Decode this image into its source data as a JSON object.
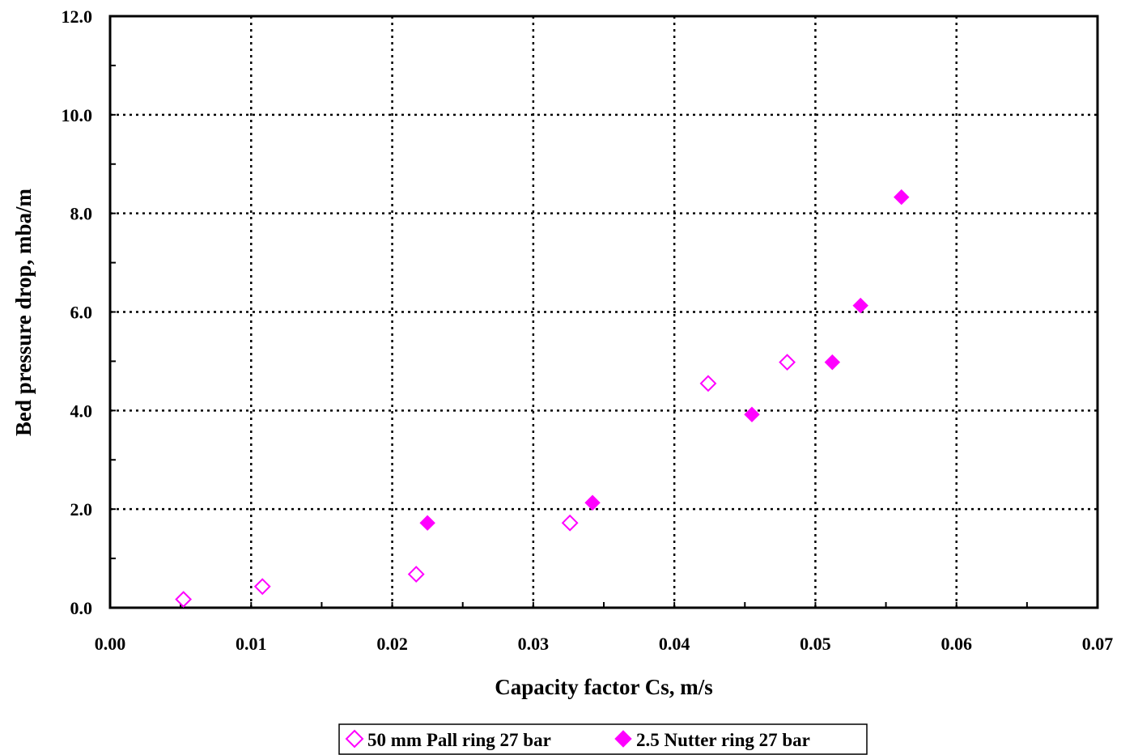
{
  "chart_data": {
    "type": "scatter",
    "xlabel": "Capacity factor Cs, m/s",
    "ylabel": "Bed pressure drop, mba/m",
    "xlim": [
      0,
      0.07
    ],
    "ylim": [
      0,
      12
    ],
    "x_ticks": [
      "0.00",
      "0.01",
      "0.02",
      "0.03",
      "0.04",
      "0.05",
      "0.06",
      "0.07"
    ],
    "y_ticks": [
      "0.0",
      "2.0",
      "4.0",
      "6.0",
      "8.0",
      "10.0",
      "12.0"
    ],
    "grid": true,
    "legend_position": "bottom",
    "series": [
      {
        "name": "50 mm Pall ring 27 bar",
        "marker": "hollow-diamond",
        "color": "#ff00ff",
        "points": [
          {
            "x": 0.0052,
            "y": 0.17
          },
          {
            "x": 0.0108,
            "y": 0.43
          },
          {
            "x": 0.0217,
            "y": 0.68
          },
          {
            "x": 0.0326,
            "y": 1.72
          },
          {
            "x": 0.0424,
            "y": 4.55
          },
          {
            "x": 0.048,
            "y": 4.98
          }
        ]
      },
      {
        "name": "2.5 Nutter ring 27 bar",
        "marker": "filled-diamond",
        "color": "#ff00ff",
        "points": [
          {
            "x": 0.0225,
            "y": 1.72
          },
          {
            "x": 0.0342,
            "y": 2.13
          },
          {
            "x": 0.0455,
            "y": 3.92
          },
          {
            "x": 0.0512,
            "y": 4.98
          },
          {
            "x": 0.0532,
            "y": 6.13
          },
          {
            "x": 0.0561,
            "y": 8.33
          }
        ]
      }
    ]
  }
}
